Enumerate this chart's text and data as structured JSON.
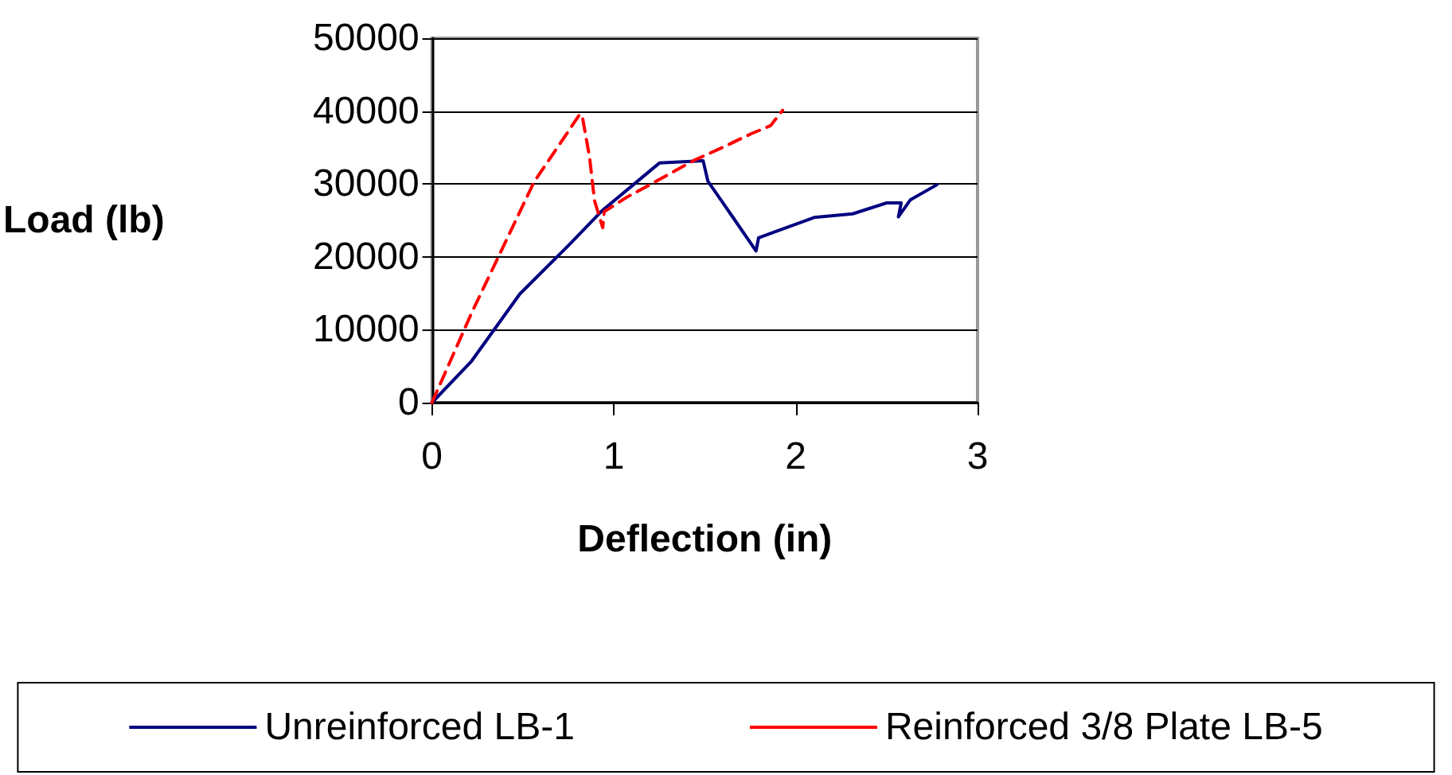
{
  "chart_data": {
    "type": "line",
    "xlabel": "Deflection (in)",
    "ylabel": "Load (lb)",
    "xlim": [
      0,
      3
    ],
    "xticks": [
      0,
      1,
      2,
      3
    ],
    "ylim": [
      0,
      50000
    ],
    "yticks": [
      0,
      10000,
      20000,
      30000,
      40000,
      50000
    ],
    "grid": "y",
    "legend": "bottom",
    "marker": "none",
    "series": [
      {
        "name": "Unreinforced LB-1",
        "color": "#000080",
        "line_style": "solid",
        "x": [
          0,
          0.218,
          0.483,
          0.748,
          0.934,
          1.093,
          1.252,
          1.491,
          1.517,
          1.65,
          1.782,
          1.796,
          1.915,
          2.101,
          2.313,
          2.5,
          2.58,
          2.565,
          2.63,
          2.777
        ],
        "values": [
          0,
          5700,
          14900,
          21500,
          26300,
          29600,
          32900,
          33200,
          30400,
          25600,
          20800,
          22600,
          23700,
          25400,
          25900,
          27400,
          27400,
          25500,
          27800,
          29900
        ]
      },
      {
        "name": "Reinforced 3/8 Plate LB-5",
        "color": "#ff0000",
        "line_style": "dashed",
        "x": [
          0,
          0.218,
          0.562,
          0.814,
          0.828,
          0.867,
          0.894,
          0.939,
          0.947,
          1.066,
          1.279,
          1.438,
          1.597,
          1.756,
          1.862,
          1.928
        ],
        "values": [
          0,
          12300,
          30300,
          39600,
          39100,
          33600,
          27700,
          24000,
          26200,
          28100,
          31000,
          33200,
          35000,
          36900,
          38000,
          40100
        ]
      }
    ]
  }
}
